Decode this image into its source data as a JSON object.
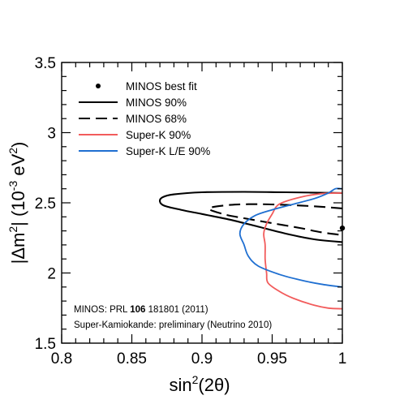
{
  "chart_data": {
    "type": "contour",
    "xlabel": {
      "base": "sin",
      "sup": "2",
      "rest": "(2θ)"
    },
    "ylabel": {
      "pre": "|Δm",
      "sup1": "2",
      "mid": "| (10",
      "sup2": "-3",
      "unit": " eV",
      "sup3": "2",
      "post": ")"
    },
    "xlim": [
      0.8,
      1.0
    ],
    "ylim": [
      1.5,
      3.5
    ],
    "xticks": [
      "0.8",
      "0.85",
      "0.9",
      "0.95",
      "1"
    ],
    "yticks": [
      "1.5",
      "2",
      "2.5",
      "3",
      "3.5"
    ],
    "xtick_values": [
      0.8,
      0.85,
      0.9,
      0.95,
      1.0
    ],
    "ytick_values": [
      1.5,
      2.0,
      2.5,
      3.0,
      3.5
    ],
    "legend": [
      {
        "label": "MINOS best fit",
        "style": "point",
        "color": "#000000"
      },
      {
        "label": "MINOS 90%",
        "style": "solid",
        "color": "#000000"
      },
      {
        "label": "MINOS 68%",
        "style": "dashed",
        "color": "#000000"
      },
      {
        "label": "Super-K 90%",
        "style": "solid",
        "color": "#f25c5c"
      },
      {
        "label": "Super-K L/E 90%",
        "style": "solid",
        "color": "#1f6fd1"
      }
    ],
    "best_fit": {
      "x": 1.0,
      "y": 2.32
    },
    "series": [
      {
        "name": "MINOS 90%",
        "color": "#000000",
        "dash": "",
        "points": [
          [
            1.0,
            2.57
          ],
          [
            0.96,
            2.575
          ],
          [
            0.93,
            2.578
          ],
          [
            0.9,
            2.575
          ],
          [
            0.88,
            2.56
          ],
          [
            0.872,
            2.54
          ],
          [
            0.87,
            2.51
          ],
          [
            0.873,
            2.48
          ],
          [
            0.885,
            2.45
          ],
          [
            0.9,
            2.42
          ],
          [
            0.92,
            2.38
          ],
          [
            0.94,
            2.33
          ],
          [
            0.96,
            2.28
          ],
          [
            0.98,
            2.24
          ],
          [
            1.0,
            2.22
          ]
        ]
      },
      {
        "name": "MINOS 68%",
        "color": "#000000",
        "dash": "14,7",
        "points": [
          [
            1.0,
            2.46
          ],
          [
            0.98,
            2.475
          ],
          [
            0.96,
            2.485
          ],
          [
            0.94,
            2.49
          ],
          [
            0.92,
            2.485
          ],
          [
            0.905,
            2.46
          ],
          [
            0.915,
            2.42
          ],
          [
            0.93,
            2.39
          ],
          [
            0.95,
            2.355
          ],
          [
            0.97,
            2.32
          ],
          [
            0.985,
            2.29
          ],
          [
            1.0,
            2.27
          ]
        ]
      },
      {
        "name": "Super-K 90%",
        "color": "#f25c5c",
        "dash": "",
        "points": [
          [
            1.0,
            2.57
          ],
          [
            0.985,
            2.565
          ],
          [
            0.97,
            2.54
          ],
          [
            0.955,
            2.49
          ],
          [
            0.95,
            2.42
          ],
          [
            0.946,
            2.35
          ],
          [
            0.944,
            2.28
          ],
          [
            0.945,
            2.2
          ],
          [
            0.945,
            2.1
          ],
          [
            0.946,
            2.0
          ],
          [
            0.947,
            1.93
          ],
          [
            0.955,
            1.87
          ],
          [
            0.965,
            1.82
          ],
          [
            0.98,
            1.77
          ],
          [
            0.99,
            1.75
          ],
          [
            1.0,
            1.745
          ]
        ]
      },
      {
        "name": "Super-K L/E 90%",
        "color": "#1f6fd1",
        "dash": "",
        "points": [
          [
            1.0,
            2.6
          ],
          [
            0.995,
            2.6
          ],
          [
            0.99,
            2.57
          ],
          [
            0.98,
            2.53
          ],
          [
            0.965,
            2.49
          ],
          [
            0.95,
            2.45
          ],
          [
            0.938,
            2.41
          ],
          [
            0.93,
            2.35
          ],
          [
            0.927,
            2.28
          ],
          [
            0.93,
            2.2
          ],
          [
            0.933,
            2.12
          ],
          [
            0.94,
            2.05
          ],
          [
            0.955,
            1.99
          ],
          [
            0.97,
            1.95
          ],
          [
            0.985,
            1.92
          ],
          [
            1.0,
            1.9
          ]
        ]
      }
    ],
    "notes": [
      {
        "segments": [
          {
            "text": "MINOS: PRL "
          },
          {
            "text": "106",
            "bold": true
          },
          {
            "text": " 181801 (2011)"
          }
        ]
      },
      {
        "segments": [
          {
            "text": "Super-Kamiokande: preliminary (Neutrino 2010)"
          }
        ]
      }
    ]
  }
}
